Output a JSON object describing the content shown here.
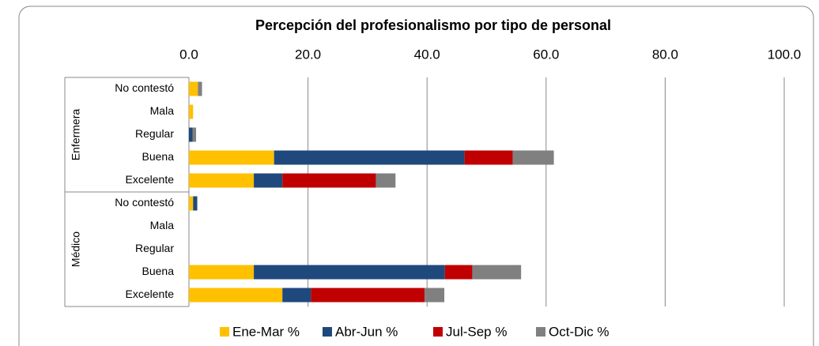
{
  "chart_data": {
    "type": "stacked-bar-horizontal",
    "title": "Percepción del profesionalismo por tipo de personal",
    "groups": [
      {
        "name": "Enfermera",
        "categories": [
          "No contestó",
          "Mala",
          "Regular",
          "Buena",
          "Excelente"
        ]
      },
      {
        "name": "Médico",
        "categories": [
          "No contestó",
          "Mala",
          "Regular",
          "Buena",
          "Excelente"
        ]
      }
    ],
    "series": [
      {
        "name": "Ene-Mar %",
        "color": "#FFC000",
        "values": [
          1.5,
          0.7,
          0,
          14.3,
          10.9,
          0.7,
          0,
          0,
          10.9,
          15.7
        ]
      },
      {
        "name": "Abr-Jun %",
        "color": "#1F497D",
        "values": [
          0,
          0,
          0.6,
          32.0,
          4.8,
          0.7,
          0,
          0,
          32.1,
          4.8
        ]
      },
      {
        "name": "Jul-Sep %",
        "color": "#C00000",
        "values": [
          0,
          0,
          0,
          8.1,
          15.7,
          0,
          0,
          0,
          4.6,
          19.1
        ]
      },
      {
        "name": "Oct-Dic %",
        "color": "#808080",
        "values": [
          0.7,
          0,
          0.6,
          6.9,
          3.3,
          0,
          0,
          0,
          8.2,
          3.3
        ]
      }
    ],
    "xlim": [
      0,
      100
    ],
    "xticks": [
      {
        "value": 0,
        "label": "0.0"
      },
      {
        "value": 20,
        "label": "20.0"
      },
      {
        "value": 40,
        "label": "40.0"
      },
      {
        "value": 60,
        "label": "60.0"
      },
      {
        "value": 80,
        "label": "80.0"
      },
      {
        "value": 100,
        "label": "100.0"
      }
    ],
    "grid": true,
    "legend": "bottom"
  }
}
